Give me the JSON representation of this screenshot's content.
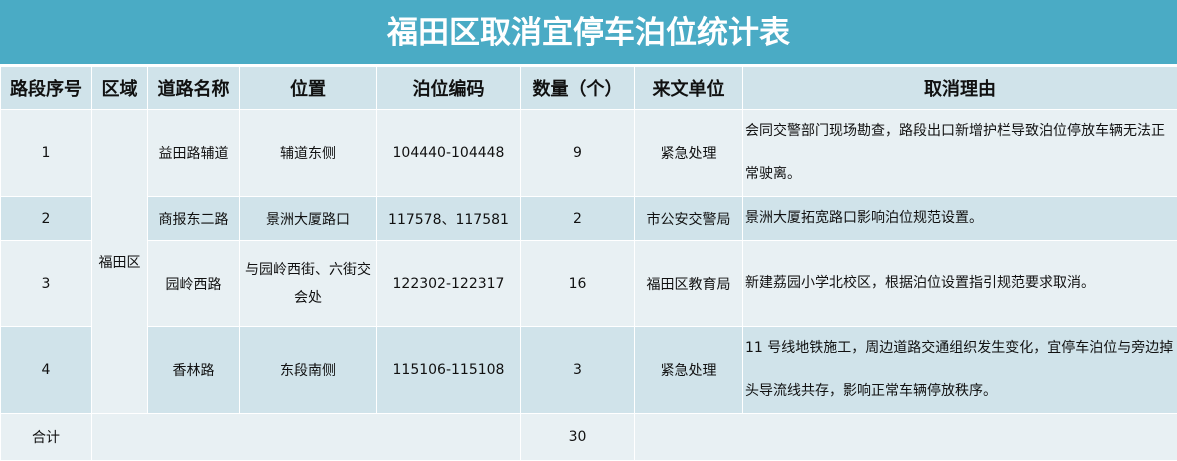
{
  "title": "福田区取消宜停车泊位统计表",
  "colors": {
    "header_bg": "#4aabc5",
    "row_light": "#e8f0f3",
    "row_dark": "#d0e3ea"
  },
  "headers": [
    "路段序号",
    "区域",
    "道路名称",
    "位置",
    "泊位编码",
    "数量（个）",
    "来文单位",
    "取消理由"
  ],
  "district": "福田区",
  "rows": [
    {
      "no": "1",
      "road": "益田路辅道",
      "position": "辅道东侧",
      "codes": "104440-104448",
      "count": "9",
      "unit": "紧急处理",
      "reason": "会同交警部门现场勘查，路段出口新增护栏导致泊位停放车辆无法正常驶离。"
    },
    {
      "no": "2",
      "road": "商报东二路",
      "position": "景洲大厦路口",
      "codes": "117578、117581",
      "count": "2",
      "unit": "市公安交警局",
      "reason": "景洲大厦拓宽路口影响泊位规范设置。"
    },
    {
      "no": "3",
      "road": "园岭西路",
      "position": "与园岭西街、六街交会处",
      "codes": "122302-122317",
      "count": "16",
      "unit": "福田区教育局",
      "reason": "新建荔园小学北校区，根据泊位设置指引规范要求取消。"
    },
    {
      "no": "4",
      "road": "香林路",
      "position": "东段南侧",
      "codes": "115106-115108",
      "count": "3",
      "unit": "紧急处理",
      "reason": "11 号线地铁施工，周边道路交通组织发生变化，宜停车泊位与旁边掉头导流线共存，影响正常车辆停放秩序。"
    }
  ],
  "total": {
    "label": "合计",
    "count": "30"
  }
}
